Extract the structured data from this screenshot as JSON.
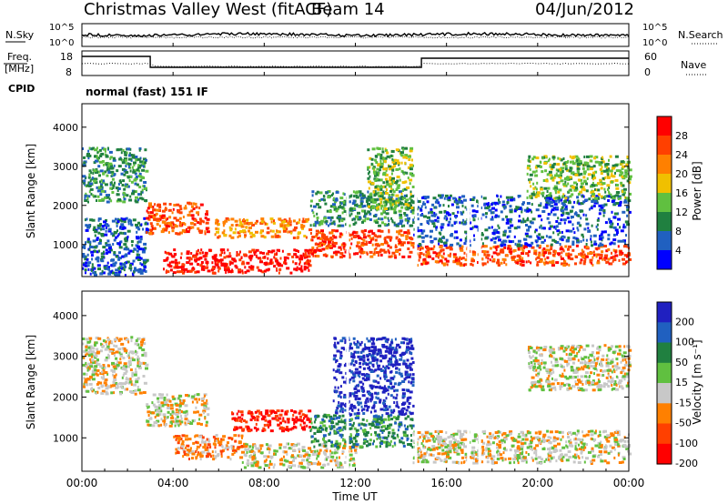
{
  "header": {
    "title": "Christmas Valley West (fitACF)",
    "beam": "Beam 14",
    "date": "04/Jun/2012"
  },
  "noise_panel": {
    "left_label": "N.Sky",
    "right_label": "N.Search",
    "left_ticks": [
      "10^5",
      "10^0"
    ],
    "right_ticks": [
      "10^5",
      "10^0"
    ]
  },
  "freq_panel": {
    "left_label_line1": "Freq.",
    "left_label_line2": "[MHz]",
    "right_label": "Nave",
    "left_ticks": [
      "18",
      "8"
    ],
    "right_ticks": [
      "60",
      "0"
    ]
  },
  "cpid": {
    "label": "CPID",
    "value": "normal (fast) 151 IF"
  },
  "time_axis": {
    "label": "Time UT",
    "ticks": [
      "00:00",
      "04:00",
      "08:00",
      "12:00",
      "16:00",
      "20:00",
      "00:00"
    ]
  },
  "chart_data": [
    {
      "type": "heatmap",
      "name": "power",
      "ylabel": "Slant Range [km]",
      "ylim": [
        180,
        4600
      ],
      "yticks": [
        "1000",
        "2000",
        "3000",
        "4000"
      ],
      "x_hours": [
        0,
        24
      ],
      "colorbar": {
        "label": "Power [dB]",
        "ticks": [
          "4",
          "8",
          "12",
          "16",
          "20",
          "24",
          "28"
        ],
        "colors": [
          "#0000ff",
          "#2060c0",
          "#208040",
          "#60c040",
          "#f0c000",
          "#ff8000",
          "#ff4000",
          "#ff0000"
        ]
      },
      "regions": [
        {
          "t0": 0.0,
          "t1": 2.8,
          "r0": 2100,
          "r1": 3500,
          "c": 2
        },
        {
          "t0": 0.0,
          "t1": 2.8,
          "r0": 250,
          "r1": 1700,
          "c": 1
        },
        {
          "t0": 2.8,
          "t1": 5.5,
          "r0": 1300,
          "r1": 2100,
          "c": 6
        },
        {
          "t0": 3.5,
          "t1": 10.0,
          "r0": 300,
          "r1": 900,
          "c": 7
        },
        {
          "t0": 5.8,
          "t1": 10.0,
          "r0": 1200,
          "r1": 1700,
          "c": 5
        },
        {
          "t0": 10.0,
          "t1": 14.5,
          "r0": 1500,
          "r1": 2400,
          "c": 2
        },
        {
          "t0": 10.0,
          "t1": 14.5,
          "r0": 700,
          "r1": 1400,
          "c": 6
        },
        {
          "t0": 12.5,
          "t1": 14.5,
          "r0": 1900,
          "r1": 3500,
          "c": 3
        },
        {
          "t0": 14.5,
          "t1": 24.0,
          "r0": 500,
          "r1": 1000,
          "c": 6
        },
        {
          "t0": 14.5,
          "t1": 24.0,
          "r0": 1000,
          "r1": 2300,
          "c": 1
        },
        {
          "t0": 19.5,
          "t1": 24.0,
          "r0": 2200,
          "r1": 3300,
          "c": 3
        }
      ]
    },
    {
      "type": "heatmap",
      "name": "velocity",
      "ylabel": "Slant Range [km]",
      "ylim": [
        180,
        4600
      ],
      "yticks": [
        "1000",
        "2000",
        "3000",
        "4000"
      ],
      "x_hours": [
        0,
        24
      ],
      "colorbar": {
        "label": "Velocity [m s⁻¹]",
        "ticks": [
          "200",
          "100",
          "50",
          "15",
          "-15",
          "-50",
          "-100",
          "-200"
        ],
        "colors": [
          "#2020c0",
          "#2060c0",
          "#208040",
          "#60c040",
          "#c8c8c8",
          "#ff8000",
          "#ff4000",
          "#ff0000"
        ]
      },
      "regions": [
        {
          "t0": 0.0,
          "t1": 2.8,
          "r0": 2100,
          "r1": 3500,
          "c": 4
        },
        {
          "t0": 2.8,
          "t1": 5.5,
          "r0": 1300,
          "r1": 2100,
          "c": 4
        },
        {
          "t0": 4.0,
          "t1": 7.0,
          "r0": 500,
          "r1": 1100,
          "c": 5
        },
        {
          "t0": 6.5,
          "t1": 10.0,
          "r0": 1200,
          "r1": 1700,
          "c": 7
        },
        {
          "t0": 7.0,
          "t1": 12.0,
          "r0": 300,
          "r1": 900,
          "c": 4
        },
        {
          "t0": 10.0,
          "t1": 14.5,
          "r0": 800,
          "r1": 1600,
          "c": 2
        },
        {
          "t0": 11.0,
          "t1": 14.5,
          "r0": 1600,
          "r1": 3500,
          "c": 0
        },
        {
          "t0": 14.5,
          "t1": 24.0,
          "r0": 400,
          "r1": 1200,
          "c": 4
        },
        {
          "t0": 19.5,
          "t1": 24.0,
          "r0": 2200,
          "r1": 3300,
          "c": 4
        }
      ]
    }
  ]
}
